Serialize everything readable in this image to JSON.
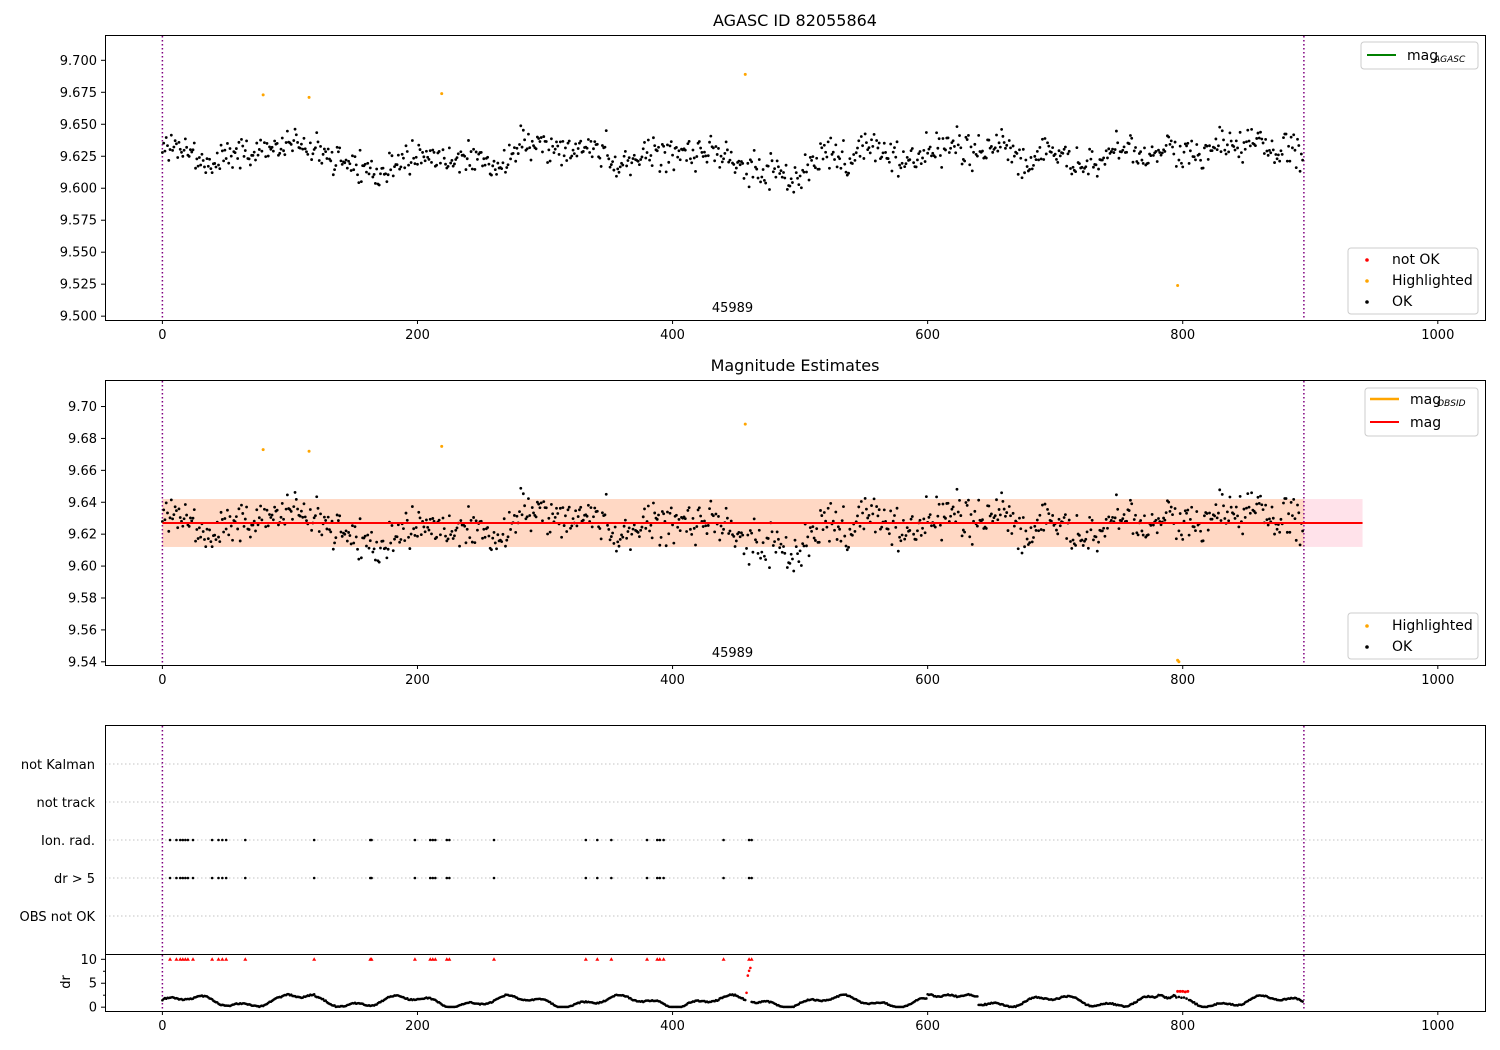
{
  "colors": {
    "ok": "#000000",
    "not_ok": "#ff0000",
    "highlighted": "#ffa500",
    "mag_line": "#ff0000",
    "agasc_line": "#008000",
    "obsid_line": "#ffa500",
    "band_inner": "#ffd8c4",
    "band_outer": "#ffe2ea",
    "obs_boundary": "#800080",
    "grid": "#b0b0b0"
  },
  "chart_data": [
    {
      "id": "top",
      "type": "scatter",
      "title": "AGASC ID 82055864",
      "xlim": [
        -45,
        1037
      ],
      "ylim": [
        9.497,
        9.719
      ],
      "xticks": [
        0,
        200,
        400,
        600,
        800,
        1000
      ],
      "yticks": [
        9.5,
        9.525,
        9.55,
        9.575,
        9.6,
        9.625,
        9.65,
        9.675,
        9.7
      ],
      "ytick_labels": [
        "9.500",
        "9.525",
        "9.550",
        "9.575",
        "9.600",
        "9.625",
        "9.650",
        "9.675",
        "9.700"
      ],
      "obs_boundaries": [
        0,
        895
      ],
      "obsid_label": "45989",
      "obsid_label_x": 447,
      "legend_lines": [
        {
          "name": "mag",
          "sub": "AGASC",
          "color": "#008000"
        }
      ],
      "legend_points": [
        {
          "name": "not OK",
          "color": "#ff0000"
        },
        {
          "name": "Highlighted",
          "color": "#ffa500"
        },
        {
          "name": "OK",
          "color": "#000000"
        }
      ],
      "highlighted": [
        [
          79,
          9.673
        ],
        [
          115,
          9.671
        ],
        [
          219,
          9.674
        ],
        [
          457,
          9.689
        ],
        [
          796,
          9.524
        ]
      ]
    },
    {
      "id": "mid",
      "type": "scatter",
      "title": "Magnitude Estimates",
      "xlim": [
        -45,
        1037
      ],
      "ylim": [
        9.538,
        9.716
      ],
      "xticks": [
        0,
        200,
        400,
        600,
        800,
        1000
      ],
      "yticks": [
        9.54,
        9.56,
        9.58,
        9.6,
        9.62,
        9.64,
        9.66,
        9.68,
        9.7
      ],
      "ytick_labels": [
        "9.54",
        "9.56",
        "9.58",
        "9.60",
        "9.62",
        "9.64",
        "9.66",
        "9.68",
        "9.70"
      ],
      "obs_boundaries": [
        0,
        895
      ],
      "obsid_label": "45989",
      "obsid_label_x": 447,
      "mag_mean": 9.627,
      "band_obsid": {
        "x": [
          0,
          895
        ],
        "y": [
          9.612,
          9.642
        ]
      },
      "band_agasc": {
        "x": [
          0,
          941
        ],
        "y": [
          9.612,
          9.642
        ]
      },
      "legend_lines": [
        {
          "name": "mag",
          "sub": "OBSID",
          "color": "#ffa500"
        },
        {
          "name": "mag",
          "sub": "",
          "color": "#ff0000"
        }
      ],
      "legend_points": [
        {
          "name": "Highlighted",
          "color": "#ffa500"
        },
        {
          "name": "OK",
          "color": "#000000"
        }
      ],
      "highlighted": [
        [
          79,
          9.673
        ],
        [
          115,
          9.672
        ],
        [
          219,
          9.675
        ],
        [
          457,
          9.689
        ],
        [
          796,
          9.541
        ],
        [
          797,
          9.54
        ]
      ]
    },
    {
      "id": "flags",
      "type": "scatter",
      "xlim": [
        -45,
        1037
      ],
      "categories": [
        "OBS not OK",
        "dr > 5",
        "Ion. rad.",
        "not track",
        "not Kalman"
      ],
      "obs_boundaries": [
        0,
        895
      ],
      "flagged_x": [
        6,
        11,
        14,
        16,
        18,
        20,
        24,
        39,
        44,
        47,
        50,
        65,
        119,
        163,
        164,
        198,
        210,
        212,
        214,
        223,
        225,
        260,
        332,
        341,
        352,
        380,
        388,
        390,
        393,
        440,
        460,
        462
      ]
    },
    {
      "id": "dr",
      "type": "scatter",
      "xlim": [
        -45,
        1037
      ],
      "ylim": [
        -0.8,
        10.9
      ],
      "xticks": [
        0,
        200,
        400,
        600,
        800,
        1000
      ],
      "yticks": [
        0,
        5,
        10
      ],
      "ytick_labels": [
        "0",
        "5",
        "10"
      ],
      "ylabel": "dr",
      "obs_boundaries": [
        0,
        895
      ],
      "clip_value": 10,
      "spike_points": [
        [
          458,
          3.0
        ],
        [
          459,
          6.6
        ],
        [
          460,
          7.6
        ],
        [
          461,
          8.2
        ]
      ],
      "high_points": [
        [
          796,
          3.3
        ],
        [
          798,
          3.3
        ],
        [
          800,
          3.3
        ],
        [
          802,
          3.2
        ],
        [
          804,
          3.3
        ]
      ]
    }
  ]
}
